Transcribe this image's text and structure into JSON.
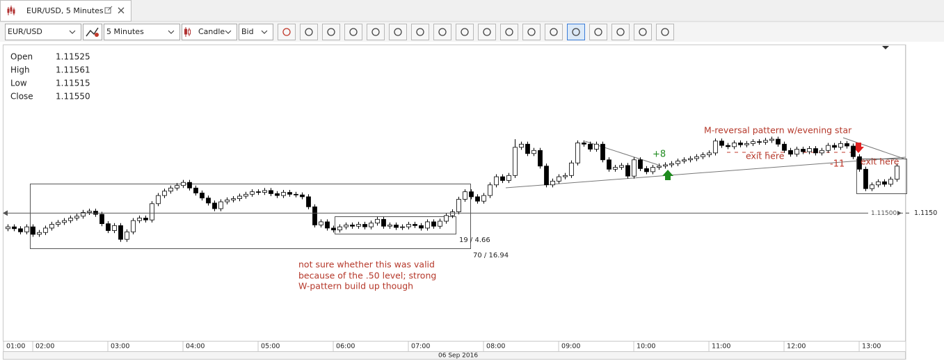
{
  "window": {
    "tab_title": "EUR/USD, 5 Minutes",
    "toolbar": {
      "instrument": "EUR/USD",
      "period": "5 Minutes",
      "chart_style": "Candle",
      "side": "Bid"
    },
    "ohlc_panel": [
      {
        "label": "Open",
        "value": "1.11525"
      },
      {
        "label": "High",
        "value": "1.11561"
      },
      {
        "label": "Low",
        "value": "1.11515"
      },
      {
        "label": "Close",
        "value": "1.11550"
      }
    ]
  },
  "chart_data": {
    "type": "candlestick",
    "up_color": "#ffffff",
    "down_color": "#000000",
    "outline_color": "#000000",
    "open": [
      1.11475,
      1.11478,
      1.11475,
      1.1147,
      1.11478,
      1.11466,
      1.11469,
      1.11476,
      1.11482,
      1.11485,
      1.11488,
      1.11492,
      1.11495,
      1.11501,
      1.11503,
      1.11498,
      1.11483,
      1.11472,
      1.1148,
      1.11458,
      1.1147,
      1.11488,
      1.11492,
      1.11489,
      1.11515,
      1.11528,
      1.11535,
      1.1154,
      1.11544,
      1.11549,
      1.1154,
      1.11532,
      1.11524,
      1.11516,
      1.11507,
      1.11518,
      1.11521,
      1.11523,
      1.11527,
      1.1153,
      1.11534,
      1.11533,
      1.11536,
      1.11531,
      1.11528,
      1.11533,
      1.1153,
      1.11529,
      1.11526,
      1.1151,
      1.11481,
      1.11486,
      1.11476,
      1.11473,
      1.11478,
      1.11481,
      1.11479,
      1.11482,
      1.11478,
      1.11484,
      1.1149,
      1.11479,
      1.11481,
      1.11477,
      1.11478,
      1.11482,
      1.1148,
      1.11476,
      1.11486,
      1.11479,
      1.11487,
      1.11496,
      1.11502,
      1.11522,
      1.11534,
      1.11526,
      1.11519,
      1.11528,
      1.11545,
      1.11558,
      1.11552,
      1.1156,
      1.11605,
      1.1161,
      1.11595,
      1.116,
      1.11575,
      1.11545,
      1.11551,
      1.11558,
      1.1156,
      1.1158,
      1.11612,
      1.1161,
      1.11602,
      1.1161,
      1.11585,
      1.1157,
      1.11573,
      1.11576,
      1.11559,
      1.11585,
      1.11571,
      1.11566,
      1.11573,
      1.11575,
      1.11577,
      1.11579,
      1.11583,
      1.11585,
      1.11587,
      1.1159,
      1.11593,
      1.11596,
      1.11615,
      1.11608,
      1.11606,
      1.11612,
      1.11609,
      1.11611,
      1.11614,
      1.11613,
      1.11616,
      1.11618,
      1.1161,
      1.116,
      1.11594,
      1.11602,
      1.11598,
      1.11603,
      1.11596,
      1.116,
      1.11608,
      1.11605,
      1.11611,
      1.11607,
      1.1159,
      1.1157,
      1.11539,
      1.11545,
      1.1155,
      1.11546,
      1.11554
    ],
    "high": [
      1.11482,
      1.11482,
      1.11479,
      1.11482,
      1.11482,
      1.11473,
      1.1148,
      1.11486,
      1.11489,
      1.11492,
      1.11496,
      1.11499,
      1.11505,
      1.11507,
      1.11507,
      1.11502,
      1.11487,
      1.11484,
      1.11484,
      1.11474,
      1.11492,
      1.11496,
      1.11496,
      1.11519,
      1.11532,
      1.11539,
      1.11544,
      1.11548,
      1.11553,
      1.11553,
      1.11544,
      1.11536,
      1.11528,
      1.1152,
      1.11522,
      1.11525,
      1.11527,
      1.11531,
      1.11534,
      1.11538,
      1.11538,
      1.1154,
      1.1154,
      1.11535,
      1.11537,
      1.11537,
      1.11534,
      1.11533,
      1.1153,
      1.11514,
      1.1149,
      1.1149,
      1.1148,
      1.11482,
      1.11485,
      1.11485,
      1.11486,
      1.11486,
      1.11488,
      1.11494,
      1.11494,
      1.11485,
      1.11485,
      1.11482,
      1.11486,
      1.11486,
      1.11484,
      1.1149,
      1.1149,
      1.11491,
      1.115,
      1.11506,
      1.11526,
      1.11538,
      1.11538,
      1.1153,
      1.11532,
      1.11549,
      1.11562,
      1.11562,
      1.11564,
      1.11618,
      1.11614,
      1.11614,
      1.11604,
      1.11604,
      1.11579,
      1.11555,
      1.11562,
      1.11564,
      1.11584,
      1.11616,
      1.11616,
      1.11614,
      1.11614,
      1.11614,
      1.11589,
      1.11577,
      1.1158,
      1.1158,
      1.11589,
      1.11589,
      1.11575,
      1.11577,
      1.11579,
      1.11581,
      1.11583,
      1.11587,
      1.11589,
      1.11591,
      1.11594,
      1.11597,
      1.116,
      1.11619,
      1.11619,
      1.11612,
      1.11616,
      1.11616,
      1.11615,
      1.11618,
      1.11618,
      1.1162,
      1.11622,
      1.11622,
      1.11614,
      1.11604,
      1.11606,
      1.11606,
      1.11607,
      1.11607,
      1.11604,
      1.11612,
      1.11612,
      1.11615,
      1.11615,
      1.11611,
      1.11594,
      1.11574,
      1.11549,
      1.11554,
      1.11554,
      1.11558,
      1.11579
    ],
    "low": [
      1.11471,
      1.11471,
      1.11466,
      1.11466,
      1.11462,
      1.11462,
      1.11465,
      1.11472,
      1.11478,
      1.11481,
      1.11484,
      1.11488,
      1.11491,
      1.11497,
      1.11494,
      1.11479,
      1.11468,
      1.11468,
      1.11454,
      1.11454,
      1.11466,
      1.11484,
      1.11485,
      1.11485,
      1.11511,
      1.11524,
      1.11531,
      1.11536,
      1.1154,
      1.11536,
      1.11528,
      1.1152,
      1.11512,
      1.11503,
      1.11503,
      1.11514,
      1.11517,
      1.11519,
      1.11523,
      1.11526,
      1.11529,
      1.11529,
      1.11527,
      1.11524,
      1.11524,
      1.11526,
      1.11525,
      1.11522,
      1.11506,
      1.11477,
      1.11477,
      1.11472,
      1.11469,
      1.11469,
      1.11474,
      1.11475,
      1.11475,
      1.11474,
      1.11474,
      1.1148,
      1.11475,
      1.11475,
      1.11473,
      1.11473,
      1.11474,
      1.11476,
      1.11472,
      1.11472,
      1.11475,
      1.11475,
      1.11483,
      1.11492,
      1.11498,
      1.11518,
      1.11522,
      1.11515,
      1.11515,
      1.11524,
      1.11541,
      1.11548,
      1.11548,
      1.11556,
      1.11601,
      1.11591,
      1.11591,
      1.11571,
      1.11541,
      1.11541,
      1.11547,
      1.11554,
      1.11556,
      1.11576,
      1.11606,
      1.11598,
      1.11598,
      1.11581,
      1.11566,
      1.11566,
      1.11569,
      1.11555,
      1.11555,
      1.11567,
      1.11562,
      1.11562,
      1.11569,
      1.11571,
      1.11573,
      1.11575,
      1.11579,
      1.11581,
      1.11583,
      1.11586,
      1.11589,
      1.11592,
      1.11604,
      1.11602,
      1.11602,
      1.11605,
      1.11605,
      1.11607,
      1.11609,
      1.11609,
      1.11612,
      1.11606,
      1.11596,
      1.1159,
      1.1159,
      1.11594,
      1.11594,
      1.11592,
      1.11592,
      1.11596,
      1.11601,
      1.11601,
      1.11603,
      1.11586,
      1.11566,
      1.11535,
      1.11535,
      1.11541,
      1.11542,
      1.11542,
      1.1155
    ],
    "close": [
      1.11478,
      1.11475,
      1.1147,
      1.11478,
      1.11466,
      1.11469,
      1.11476,
      1.11482,
      1.11485,
      1.11488,
      1.11492,
      1.11495,
      1.11501,
      1.11503,
      1.11498,
      1.11483,
      1.11472,
      1.1148,
      1.11458,
      1.1147,
      1.11488,
      1.11492,
      1.11489,
      1.11515,
      1.11528,
      1.11535,
      1.1154,
      1.11544,
      1.11549,
      1.1154,
      1.11532,
      1.11524,
      1.11516,
      1.11507,
      1.11518,
      1.11521,
      1.11523,
      1.11527,
      1.1153,
      1.11534,
      1.11533,
      1.11536,
      1.11531,
      1.11528,
      1.11533,
      1.1153,
      1.11529,
      1.11526,
      1.1151,
      1.11481,
      1.11486,
      1.11476,
      1.11473,
      1.11478,
      1.11481,
      1.11479,
      1.11482,
      1.11478,
      1.11484,
      1.1149,
      1.11479,
      1.11481,
      1.11477,
      1.11478,
      1.11482,
      1.1148,
      1.11476,
      1.11486,
      1.11479,
      1.11487,
      1.11496,
      1.11502,
      1.11522,
      1.11534,
      1.11526,
      1.11519,
      1.11528,
      1.11545,
      1.11558,
      1.11552,
      1.1156,
      1.11605,
      1.1161,
      1.11595,
      1.116,
      1.11575,
      1.11545,
      1.11551,
      1.11558,
      1.1156,
      1.1158,
      1.11612,
      1.1161,
      1.11602,
      1.1161,
      1.11585,
      1.1157,
      1.11573,
      1.11576,
      1.11559,
      1.11585,
      1.11571,
      1.11566,
      1.11573,
      1.11575,
      1.11577,
      1.11579,
      1.11583,
      1.11585,
      1.11587,
      1.1159,
      1.11593,
      1.11596,
      1.11615,
      1.11608,
      1.11606,
      1.11612,
      1.11609,
      1.11611,
      1.11614,
      1.11613,
      1.11616,
      1.11618,
      1.1161,
      1.116,
      1.11594,
      1.11602,
      1.11598,
      1.11603,
      1.11596,
      1.116,
      1.11608,
      1.11605,
      1.11611,
      1.11607,
      1.1159,
      1.1157,
      1.11539,
      1.11545,
      1.1155,
      1.11546,
      1.11554,
      1.11575
    ],
    "xlim": [
      -0.67,
      143.44
    ],
    "xticks": [
      {
        "value": -0.67,
        "label": "01:00"
      },
      {
        "value": 4,
        "label": "02:00"
      },
      {
        "value": 16,
        "label": "03:00"
      },
      {
        "value": 28,
        "label": "04:00"
      },
      {
        "value": 40,
        "label": "05:00"
      },
      {
        "value": 52,
        "label": "06:00"
      },
      {
        "value": 64,
        "label": "07:00"
      },
      {
        "value": 76,
        "label": "08:00"
      },
      {
        "value": 88,
        "label": "09:00"
      },
      {
        "value": 100,
        "label": "10:00"
      },
      {
        "value": 112,
        "label": "11:00"
      },
      {
        "value": 124,
        "label": "12:00"
      },
      {
        "value": 136,
        "label": "13:00"
      }
    ],
    "date_label": "06 Sep 2016",
    "ylim": [
      1.11296,
      1.11768
    ],
    "yticks": [
      {
        "value": 1.115,
        "label": "1.1150"
      }
    ],
    "price_line": {
      "value": 1.115,
      "label": "1.11500"
    },
    "box_labels": [
      "19 / 4.66",
      "70 / 16.94"
    ],
    "note_lines": [
      "not sure whether this was valid",
      "because of the .50 level; strong",
      "W-pattern build up though"
    ],
    "pattern_label": "M-reversal pattern w/evening star",
    "entry_label": "+8",
    "loss_label": "-11",
    "exit_labels": [
      "exit here",
      "exit here"
    ]
  }
}
